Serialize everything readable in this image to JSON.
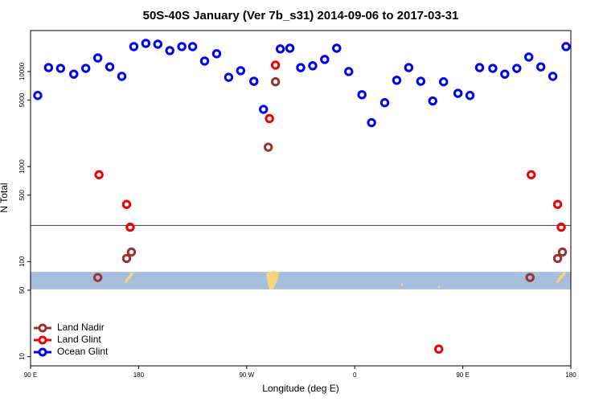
{
  "chart_data": {
    "type": "scatter",
    "title": "50S-40S January (Ver 7b_s31)   2014-09-06 to 2017-03-31",
    "xlabel": "Longitude (deg E)",
    "ylabel": "N Total",
    "xlim": [
      90,
      540
    ],
    "xticks": [
      {
        "value": 90,
        "label": "90 E"
      },
      {
        "value": 180,
        "label": "180"
      },
      {
        "value": 270,
        "label": "90 W"
      },
      {
        "value": 360,
        "label": "0"
      },
      {
        "value": 450,
        "label": "90 E"
      },
      {
        "value": 540,
        "label": "180"
      }
    ],
    "ylim": [
      8,
      27000
    ],
    "yticks": [
      10,
      50,
      100,
      500,
      1000,
      5000,
      10000
    ],
    "log_y": true,
    "hline": 240,
    "hline_color": "#555555",
    "band": [
      51,
      78
    ],
    "band_color": "#a8bedd",
    "legend": "lower left",
    "series": [
      {
        "name": "Land Nadir",
        "color": "#993333",
        "x": [
          146,
          170,
          174,
          288,
          294,
          506,
          529,
          533
        ],
        "values": [
          68,
          108,
          126,
          1600,
          7800,
          68,
          108,
          126
        ]
      },
      {
        "name": "Land Glint",
        "color": "#ee0000",
        "x": [
          147,
          170,
          173,
          289,
          294,
          430,
          507,
          529,
          532
        ],
        "values": [
          820,
          400,
          230,
          3200,
          11700,
          12,
          820,
          400,
          230
        ]
      },
      {
        "name": "Ocean Glint",
        "color": "#0000ee",
        "x": [
          96,
          105,
          115,
          126,
          136,
          146,
          156,
          166,
          176,
          186,
          196,
          206,
          216,
          225,
          235,
          245,
          255,
          265,
          276,
          284,
          298,
          306,
          315,
          325,
          335,
          345,
          355,
          366,
          374,
          385,
          395,
          405,
          415,
          425,
          434,
          446,
          456,
          464,
          475,
          485,
          495,
          505,
          515,
          525,
          536
        ],
        "values": [
          5600,
          11000,
          10800,
          9400,
          10800,
          13900,
          11200,
          8900,
          18300,
          19800,
          19400,
          16600,
          18300,
          18300,
          12900,
          15400,
          8700,
          10200,
          7900,
          4000,
          17300,
          17600,
          11000,
          11500,
          13400,
          17600,
          10000,
          5700,
          2900,
          4700,
          8100,
          11000,
          7900,
          4900,
          7800,
          5900,
          5600,
          11000,
          10800,
          9400,
          10800,
          14200,
          11200,
          8900,
          18300
        ]
      }
    ]
  }
}
